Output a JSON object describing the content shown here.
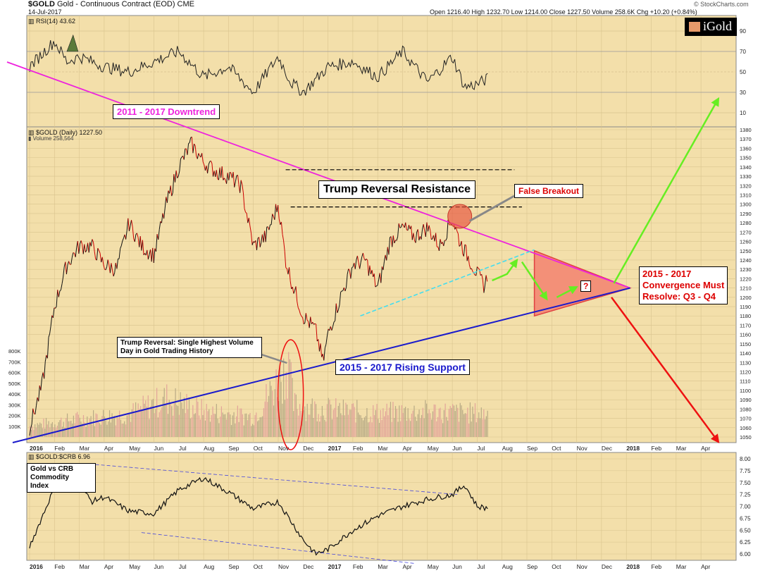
{
  "header": {
    "symbol": "$GOLD",
    "description": "Gold - Continuous Contract (EOD)",
    "exchange": "CME",
    "date": "14-Jul-2017",
    "ohlc_text": "Open 1216.40  High 1232.70  Low 1214.00  Close 1227.50  Volume 258.6K  Chg +10.20 (+0.84%)",
    "credit": "© StockCharts.com",
    "logo_text": "iGold"
  },
  "rsi_panel": {
    "label": "RSI(14) 43.62",
    "ticks": [
      "90",
      "70",
      "50",
      "30",
      "10"
    ]
  },
  "price_panel": {
    "label": "$GOLD (Daily) 1227.50",
    "volume_label": "Volume 258,564",
    "volume_ticks": [
      "800K",
      "700K",
      "600K",
      "500K",
      "400K",
      "300K",
      "200K",
      "100K"
    ]
  },
  "ratio_panel": {
    "label": "$GOLD:$CRB 6.96",
    "ticks": [
      "8.00",
      "7.75",
      "7.50",
      "7.25",
      "7.00",
      "6.75",
      "6.50",
      "6.25",
      "6.00"
    ]
  },
  "annotations": {
    "downtrend": "2011 - 2017 Downtrend",
    "resistance": "Trump Reversal Resistance",
    "false_breakout": "False Breakout",
    "reversal_note": "Trump Reversal: Single Highest Volume Day in Gold Trading History",
    "support": "2015 - 2017 Rising Support",
    "convergence": [
      "2015 - 2017",
      "Convergence Must",
      "Resolve: Q3 - Q4"
    ],
    "question": "?",
    "ratio_note": [
      "Gold vs CRB",
      "Commodity",
      "Index"
    ]
  },
  "colors": {
    "background": "#f3dfaa",
    "price_up": "#111111",
    "price_down": "#cc0000",
    "downtrend": "#ee22dd",
    "support": "#1a1acc",
    "channel": "#44ddee",
    "bull": "#66ee22",
    "bear": "#ee1111",
    "triangle": "#f39078"
  },
  "chart_data": {
    "type": "line",
    "title": "$GOLD Gold - Continuous Contract (EOD) CME",
    "x_ticks": [
      "2016",
      "Feb",
      "Mar",
      "Apr",
      "May",
      "Jun",
      "Jul",
      "Aug",
      "Sep",
      "Oct",
      "Nov",
      "Dec",
      "2017",
      "Feb",
      "Mar",
      "Apr",
      "May",
      "Jun",
      "Jul",
      "Aug",
      "Sep",
      "Oct",
      "Nov",
      "Dec",
      "2018",
      "Feb",
      "Mar",
      "Apr"
    ],
    "price_ticks": [
      1380,
      1370,
      1360,
      1350,
      1340,
      1330,
      1320,
      1310,
      1300,
      1290,
      1280,
      1270,
      1260,
      1250,
      1240,
      1230,
      1220,
      1210,
      1200,
      1190,
      1180,
      1170,
      1160,
      1150,
      1140,
      1130,
      1120,
      1110,
      1100,
      1090,
      1080,
      1070,
      1060,
      1050
    ],
    "ylim": [
      1045,
      1385
    ],
    "price_series": {
      "name": "$GOLD (Daily)",
      "months": [
        0,
        0.5,
        1,
        1.5,
        2,
        2.5,
        3,
        3.5,
        4,
        4.5,
        5,
        5.5,
        6,
        6.5,
        7,
        7.5,
        8,
        8.5,
        9,
        9.5,
        10,
        10.3,
        10.5,
        11,
        11.5,
        11.8,
        12,
        12.5,
        13,
        13.5,
        14,
        14.5,
        15,
        15.5,
        16,
        16.5,
        17,
        17.3,
        17.6,
        18,
        18.3,
        18.45
      ],
      "values": [
        1060,
        1105,
        1190,
        1235,
        1255,
        1255,
        1235,
        1230,
        1280,
        1255,
        1245,
        1300,
        1340,
        1365,
        1345,
        1335,
        1330,
        1320,
        1255,
        1265,
        1300,
        1240,
        1220,
        1180,
        1165,
        1130,
        1160,
        1200,
        1235,
        1240,
        1210,
        1260,
        1275,
        1265,
        1275,
        1255,
        1285,
        1260,
        1245,
        1225,
        1212,
        1227
      ]
    },
    "rsi_series": {
      "name": "RSI(14)",
      "ylim": [
        0,
        100
      ],
      "months": [
        0,
        1,
        1.5,
        2,
        3,
        4,
        5,
        6,
        7,
        8,
        9,
        10,
        10.5,
        11,
        12,
        13,
        14,
        15,
        16,
        17,
        17.5,
        18,
        18.45
      ],
      "values": [
        55,
        80,
        60,
        65,
        55,
        50,
        60,
        70,
        45,
        55,
        30,
        65,
        40,
        30,
        55,
        60,
        45,
        70,
        40,
        65,
        35,
        38,
        43.62
      ]
    },
    "volume_series": {
      "name": "Volume",
      "ylim": [
        0,
        850000
      ],
      "months": [
        0,
        2,
        4,
        5.5,
        7,
        9,
        10.4,
        10.6,
        11,
        12,
        14,
        16,
        18
      ],
      "values": [
        120000,
        200000,
        250000,
        420000,
        280000,
        220000,
        790000,
        350000,
        330000,
        300000,
        260000,
        280000,
        258564
      ]
    },
    "ratio_series": {
      "name": "$GOLD:$CRB",
      "ylim": [
        5.95,
        8.05
      ],
      "months": [
        0,
        1,
        2,
        2.5,
        3,
        4,
        5,
        6,
        7,
        8,
        9,
        10,
        11,
        11.5,
        12,
        13,
        14,
        15,
        16,
        17,
        17.5,
        18,
        18.45
      ],
      "values": [
        6.15,
        7.4,
        7.45,
        7.1,
        7.2,
        6.9,
        6.85,
        7.35,
        7.6,
        7.3,
        6.95,
        7.1,
        6.3,
        6.0,
        6.1,
        6.5,
        6.8,
        7.0,
        7.15,
        7.25,
        7.45,
        7.0,
        6.96
      ]
    }
  }
}
